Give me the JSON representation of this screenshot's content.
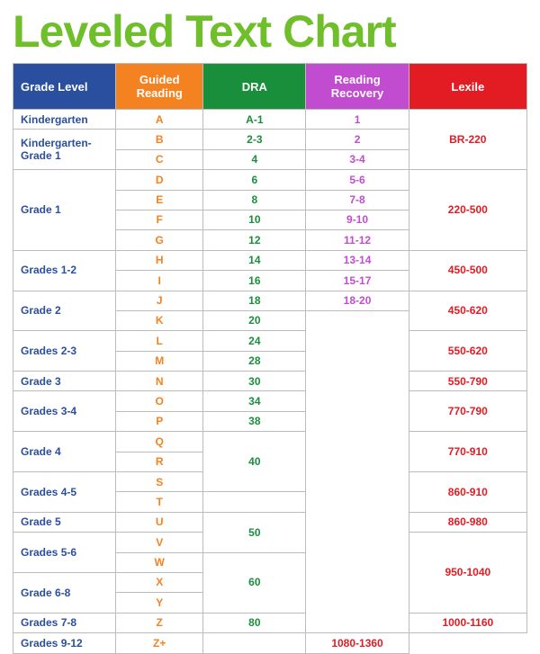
{
  "title": "Leveled Text Chart",
  "title_color": "#6fbf2b",
  "cols": [
    {
      "label": "Grade Level",
      "bg": "#2a4f9e",
      "text": "#2a4f9e"
    },
    {
      "label": "Guided Reading",
      "bg": "#f58220",
      "text": "#f58220"
    },
    {
      "label": "DRA",
      "bg": "#1a8f3b",
      "text": "#1a8f3b"
    },
    {
      "label": "Reading Recovery",
      "bg": "#c24ccf",
      "text": "#c24ccf"
    },
    {
      "label": "Lexile",
      "bg": "#e31b23",
      "text": "#e31b23"
    }
  ],
  "rows": [
    {
      "grade": {
        "v": "Kindergarten",
        "s": 1
      },
      "gr": "A",
      "dra": "A-1",
      "rr": "1",
      "lex": {
        "v": "BR-220",
        "s": 3
      }
    },
    {
      "grade": {
        "v": "Kindergarten-Grade 1",
        "s": 2
      },
      "gr": "B",
      "dra": "2-3",
      "rr": "2"
    },
    {
      "gr": "C",
      "dra": "4",
      "rr": "3-4"
    },
    {
      "grade": {
        "v": "Grade 1",
        "s": 4
      },
      "gr": "D",
      "dra": "6",
      "rr": "5-6",
      "lex": {
        "v": "220-500",
        "s": 4
      }
    },
    {
      "gr": "E",
      "dra": "8",
      "rr": "7-8"
    },
    {
      "gr": "F",
      "dra": "10",
      "rr": "9-10"
    },
    {
      "gr": "G",
      "dra": "12",
      "rr": "11-12"
    },
    {
      "grade": {
        "v": "Grades 1-2",
        "s": 2
      },
      "gr": "H",
      "dra": "14",
      "rr": "13-14",
      "lex": {
        "v": "450-500",
        "s": 2
      }
    },
    {
      "gr": "I",
      "dra": "16",
      "rr": "15-17"
    },
    {
      "grade": {
        "v": "Grade 2",
        "s": 2
      },
      "gr": "J",
      "dra": "18",
      "rr": "18-20",
      "lex": {
        "v": "450-620",
        "s": 2
      }
    },
    {
      "gr": "K",
      "dra": "20",
      "rr": {
        "v": "",
        "s": 16
      }
    },
    {
      "grade": {
        "v": "Grades 2-3",
        "s": 2
      },
      "gr": "L",
      "dra": "24",
      "lex": {
        "v": "550-620",
        "s": 2
      }
    },
    {
      "gr": "M",
      "dra": "28"
    },
    {
      "grade": {
        "v": "Grade 3",
        "s": 1
      },
      "gr": "N",
      "dra": "30",
      "lex": {
        "v": "550-790",
        "s": 1
      }
    },
    {
      "grade": {
        "v": "Grades 3-4",
        "s": 2
      },
      "gr": "O",
      "dra": "34",
      "lex": {
        "v": "770-790",
        "s": 2
      }
    },
    {
      "gr": "P",
      "dra": "38"
    },
    {
      "grade": {
        "v": "Grade 4",
        "s": 2
      },
      "gr": "Q",
      "dra": {
        "v": "40",
        "s": 3
      },
      "lex": {
        "v": "770-910",
        "s": 2
      }
    },
    {
      "gr": "R"
    },
    {
      "grade": {
        "v": "Grades 4-5",
        "s": 2
      },
      "gr": "S",
      "lex": {
        "v": "860-910",
        "s": 2
      }
    },
    {
      "gr": "T"
    },
    {
      "grade": {
        "v": "Grade 5",
        "s": 1
      },
      "gr": "U",
      "dra": {
        "v": "50",
        "s": 2
      },
      "lex": {
        "v": "860-980",
        "s": 1
      }
    },
    {
      "grade": {
        "v": "Grades 5-6",
        "s": 2
      },
      "gr": "V",
      "lex": {
        "v": "950-1040",
        "s": 4
      }
    },
    {
      "gr": "W",
      "dra": {
        "v": "60",
        "s": 3
      }
    },
    {
      "grade": {
        "v": "Grade 6-8",
        "s": 2
      },
      "gr": "X"
    },
    {
      "gr": "Y"
    },
    {
      "grade": {
        "v": "Grades 7-8",
        "s": 1
      },
      "gr": "Z",
      "dra": "80",
      "lex": {
        "v": "1000-1160",
        "s": 1
      }
    },
    {
      "grade": {
        "v": "Grades 9-12",
        "s": 1
      },
      "gr": "Z+",
      "dra": {
        "v": "",
        "s": 1
      },
      "lex": {
        "v": "1080-1360",
        "s": 1
      }
    }
  ]
}
